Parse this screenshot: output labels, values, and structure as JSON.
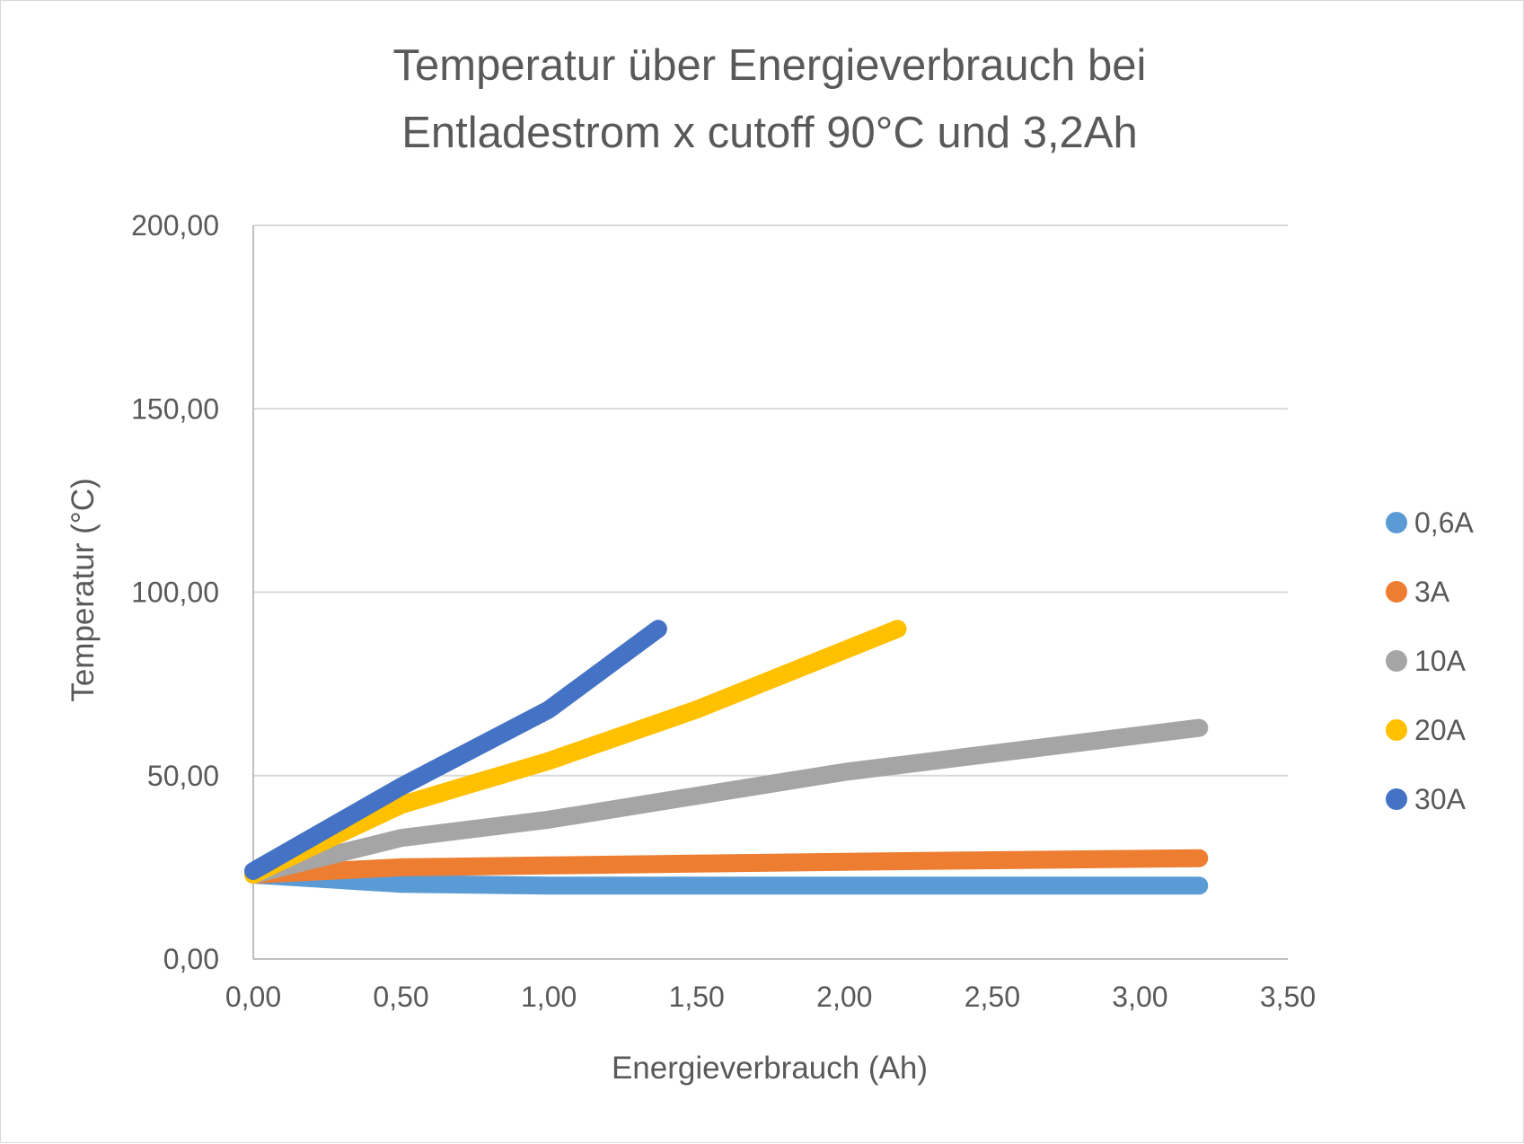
{
  "chart_data": {
    "type": "line",
    "title_lines": [
      "Temperatur über Energieverbrauch bei",
      "Entladestrom x cutoff 90°C und 3,2Ah"
    ],
    "xlabel": "Energieverbrauch (Ah)",
    "ylabel": "Temperatur (°C)",
    "xlim": [
      0,
      3.5
    ],
    "ylim": [
      0,
      200
    ],
    "x_ticks": [
      0,
      0.5,
      1.0,
      1.5,
      2.0,
      2.5,
      3.0,
      3.5
    ],
    "x_tick_labels": [
      "0,00",
      "0,50",
      "1,00",
      "1,50",
      "2,00",
      "2,50",
      "3,00",
      "3,50"
    ],
    "y_ticks": [
      0,
      50,
      100,
      150,
      200
    ],
    "y_tick_labels": [
      "0,00",
      "50,00",
      "100,00",
      "150,00",
      "200,00"
    ],
    "grid": "horizontal",
    "legend_position": "right",
    "series": [
      {
        "name": "0,6A",
        "color": "#5B9BD5",
        "points": [
          [
            0,
            23
          ],
          [
            0.5,
            20.5
          ],
          [
            1.0,
            20
          ],
          [
            2.0,
            20
          ],
          [
            3.2,
            20
          ]
        ]
      },
      {
        "name": "3A",
        "color": "#ED7D31",
        "points": [
          [
            0,
            23
          ],
          [
            0.5,
            25
          ],
          [
            1.0,
            25.5
          ],
          [
            2.0,
            26.5
          ],
          [
            3.2,
            27.5
          ]
        ]
      },
      {
        "name": "10A",
        "color": "#A5A5A5",
        "points": [
          [
            0,
            23
          ],
          [
            0.5,
            33
          ],
          [
            1.0,
            38
          ],
          [
            2.0,
            51
          ],
          [
            3.2,
            63
          ]
        ]
      },
      {
        "name": "20A",
        "color": "#FFC000",
        "points": [
          [
            0,
            23
          ],
          [
            0.5,
            42
          ],
          [
            1.0,
            54
          ],
          [
            1.5,
            68
          ],
          [
            2.18,
            90
          ]
        ]
      },
      {
        "name": "30A",
        "color": "#4472C4",
        "points": [
          [
            0,
            24
          ],
          [
            0.5,
            47
          ],
          [
            1.0,
            68
          ],
          [
            1.37,
            90
          ]
        ]
      }
    ]
  }
}
